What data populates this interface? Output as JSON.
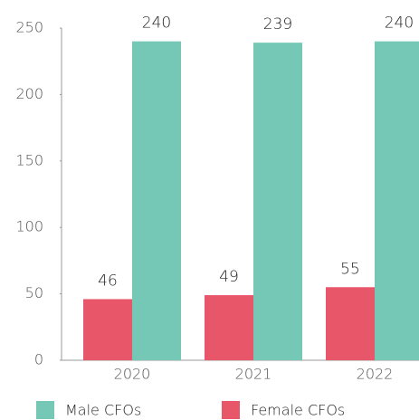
{
  "chart_data": {
    "type": "bar",
    "categories": [
      "2020",
      "2021",
      "2022"
    ],
    "series": [
      {
        "name": "Female CFOs",
        "color": "#e8566a",
        "values": [
          46,
          49,
          55
        ]
      },
      {
        "name": "Male CFOs",
        "color": "#76c8b6",
        "values": [
          240,
          239,
          240
        ]
      }
    ],
    "legend_order": [
      "Male CFOs",
      "Female CFOs"
    ],
    "ylim": [
      0,
      250
    ],
    "yticks": [
      0,
      50,
      100,
      150,
      200,
      250
    ],
    "grid": false,
    "legend": "bottom"
  }
}
